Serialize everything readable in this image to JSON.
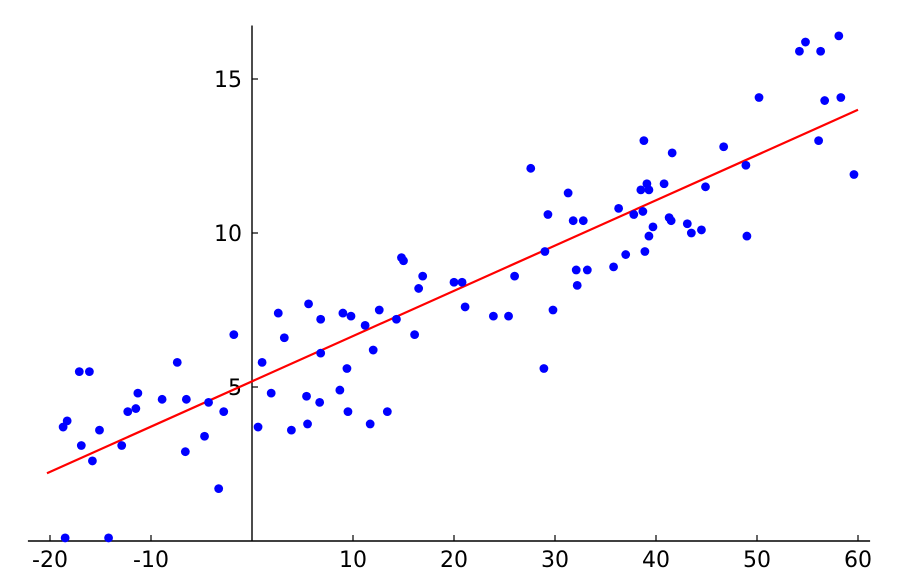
{
  "chart_data": {
    "type": "scatter",
    "xlim": [
      -21,
      61
    ],
    "ylim": [
      0,
      16.8
    ],
    "x_ticks": [
      {
        "value": -20,
        "label": "-20"
      },
      {
        "value": -10,
        "label": "-10"
      },
      {
        "value": 10,
        "label": "10"
      },
      {
        "value": 20,
        "label": "20"
      },
      {
        "value": 30,
        "label": "30"
      },
      {
        "value": 40,
        "label": "40"
      },
      {
        "value": 50,
        "label": "50"
      },
      {
        "value": 60,
        "label": "60"
      }
    ],
    "y_ticks": [
      {
        "value": 5,
        "label": "5"
      },
      {
        "value": 10,
        "label": "10"
      },
      {
        "value": 15,
        "label": "15"
      }
    ],
    "grid": false,
    "points_color": "#0000ff",
    "points": [
      [
        -18.5,
        0.1
      ],
      [
        -18.7,
        3.7
      ],
      [
        -18.3,
        3.9
      ],
      [
        -17.1,
        5.5
      ],
      [
        -16.9,
        3.1
      ],
      [
        -16.1,
        5.5
      ],
      [
        -15.8,
        2.6
      ],
      [
        -15.1,
        3.6
      ],
      [
        -14.2,
        0.1
      ],
      [
        -12.9,
        3.1
      ],
      [
        -12.3,
        4.2
      ],
      [
        -11.3,
        4.8
      ],
      [
        -11.5,
        4.3
      ],
      [
        -8.9,
        4.6
      ],
      [
        -7.4,
        5.8
      ],
      [
        -6.6,
        2.9
      ],
      [
        -6.5,
        4.6
      ],
      [
        -4.7,
        3.4
      ],
      [
        -4.3,
        4.5
      ],
      [
        -3.3,
        1.7
      ],
      [
        -2.8,
        4.2
      ],
      [
        -1.8,
        6.7
      ],
      [
        0.6,
        3.7
      ],
      [
        1.0,
        5.8
      ],
      [
        1.9,
        4.8
      ],
      [
        2.6,
        7.4
      ],
      [
        3.2,
        6.6
      ],
      [
        3.9,
        3.6
      ],
      [
        5.5,
        3.8
      ],
      [
        5.4,
        4.7
      ],
      [
        5.6,
        7.7
      ],
      [
        6.7,
        4.5
      ],
      [
        6.8,
        7.2
      ],
      [
        6.8,
        6.1
      ],
      [
        8.7,
        4.9
      ],
      [
        9.0,
        7.4
      ],
      [
        9.4,
        5.6
      ],
      [
        9.5,
        4.2
      ],
      [
        9.8,
        7.3
      ],
      [
        11.2,
        7.0
      ],
      [
        11.7,
        3.8
      ],
      [
        12.0,
        6.2
      ],
      [
        12.6,
        7.5
      ],
      [
        13.4,
        4.2
      ],
      [
        14.3,
        7.2
      ],
      [
        14.8,
        9.2
      ],
      [
        15.0,
        9.1
      ],
      [
        16.1,
        6.7
      ],
      [
        16.5,
        8.2
      ],
      [
        16.9,
        8.6
      ],
      [
        20.0,
        8.4
      ],
      [
        20.8,
        8.4
      ],
      [
        21.1,
        7.6
      ],
      [
        23.9,
        7.3
      ],
      [
        25.4,
        7.3
      ],
      [
        26.0,
        8.6
      ],
      [
        27.6,
        12.1
      ],
      [
        28.9,
        5.6
      ],
      [
        29.0,
        9.4
      ],
      [
        29.3,
        10.6
      ],
      [
        29.8,
        7.5
      ],
      [
        31.3,
        11.3
      ],
      [
        31.8,
        10.4
      ],
      [
        32.1,
        8.8
      ],
      [
        32.2,
        8.3
      ],
      [
        32.8,
        10.4
      ],
      [
        33.2,
        8.8
      ],
      [
        35.8,
        8.9
      ],
      [
        36.3,
        10.8
      ],
      [
        37.0,
        9.3
      ],
      [
        37.8,
        10.6
      ],
      [
        38.5,
        11.4
      ],
      [
        38.7,
        10.7
      ],
      [
        38.8,
        13.0
      ],
      [
        38.9,
        9.4
      ],
      [
        39.1,
        11.6
      ],
      [
        39.3,
        9.9
      ],
      [
        39.3,
        11.4
      ],
      [
        39.7,
        10.2
      ],
      [
        40.8,
        11.6
      ],
      [
        41.3,
        10.5
      ],
      [
        41.6,
        12.6
      ],
      [
        41.5,
        10.4
      ],
      [
        43.1,
        10.3
      ],
      [
        43.5,
        10.0
      ],
      [
        44.5,
        10.1
      ],
      [
        44.9,
        11.5
      ],
      [
        46.7,
        12.8
      ],
      [
        48.9,
        12.2
      ],
      [
        49.0,
        9.9
      ],
      [
        50.2,
        14.4
      ],
      [
        54.2,
        15.9
      ],
      [
        54.8,
        16.2
      ],
      [
        56.3,
        15.9
      ],
      [
        56.1,
        13.0
      ],
      [
        56.7,
        14.3
      ],
      [
        58.1,
        16.4
      ],
      [
        58.3,
        14.4
      ],
      [
        59.6,
        11.9
      ]
    ],
    "fit_line": {
      "color": "#ff0000",
      "points": [
        [
          -20.3,
          2.2
        ],
        [
          60.0,
          14.0
        ]
      ]
    }
  }
}
